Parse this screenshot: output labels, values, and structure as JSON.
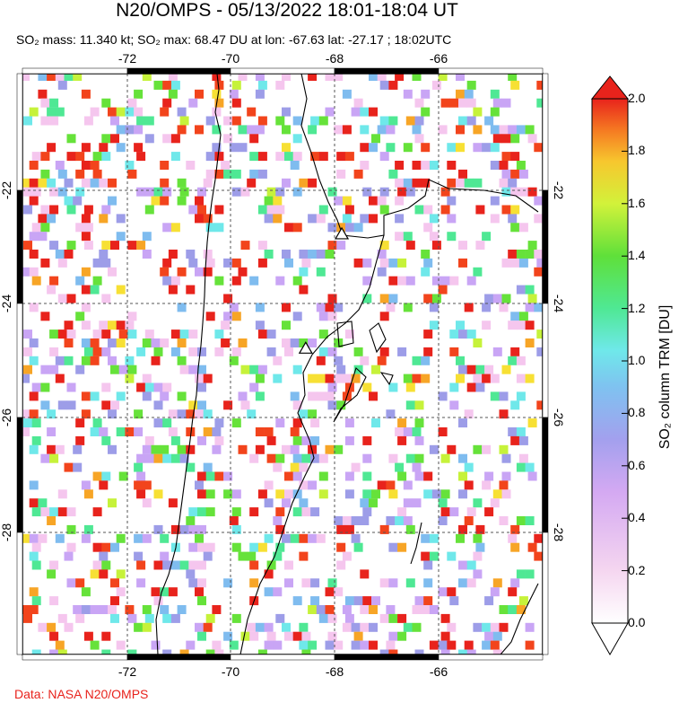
{
  "title": "N20/OMPS - 05/13/2022 18:01-18:04 UT",
  "subtitle": "SO₂ mass: 11.340 kt; SO₂ max: 68.47 DU at lon: -67.63 lat: -27.17 ; 18:02UTC",
  "credit": "Data: NASA N20/OMPS",
  "map": {
    "lon_range": [
      -74,
      -63.9
    ],
    "lat_range": [
      -30.1,
      -20.7
    ],
    "lon_ticks": [
      "-72",
      "-70",
      "-68",
      "-66"
    ],
    "lat_ticks": [
      "-22",
      "-24",
      "-26",
      "-28"
    ],
    "volcano_markers": [
      {
        "lon": -67.8,
        "lat": -23.3
      },
      {
        "lon": -68.5,
        "lat": -25.15
      }
    ],
    "so2_max_location": {
      "lon": -67.63,
      "lat": -27.17
    }
  },
  "colorbar": {
    "title": "SO₂ column TRM [DU]",
    "ticks": [
      "2.0",
      "1.8",
      "1.6",
      "1.4",
      "1.2",
      "1.0",
      "0.8",
      "0.6",
      "0.4",
      "0.2",
      "0.0"
    ],
    "range": [
      0.0,
      2.0
    ],
    "colors": [
      "#ffffff",
      "#f5c6ee",
      "#c9a5f5",
      "#9d9de8",
      "#7fbcef",
      "#6fe8ea",
      "#4fe894",
      "#66e23a",
      "#c6f23a",
      "#f7e034",
      "#f7a526",
      "#f2441c",
      "#e8231c"
    ]
  }
}
